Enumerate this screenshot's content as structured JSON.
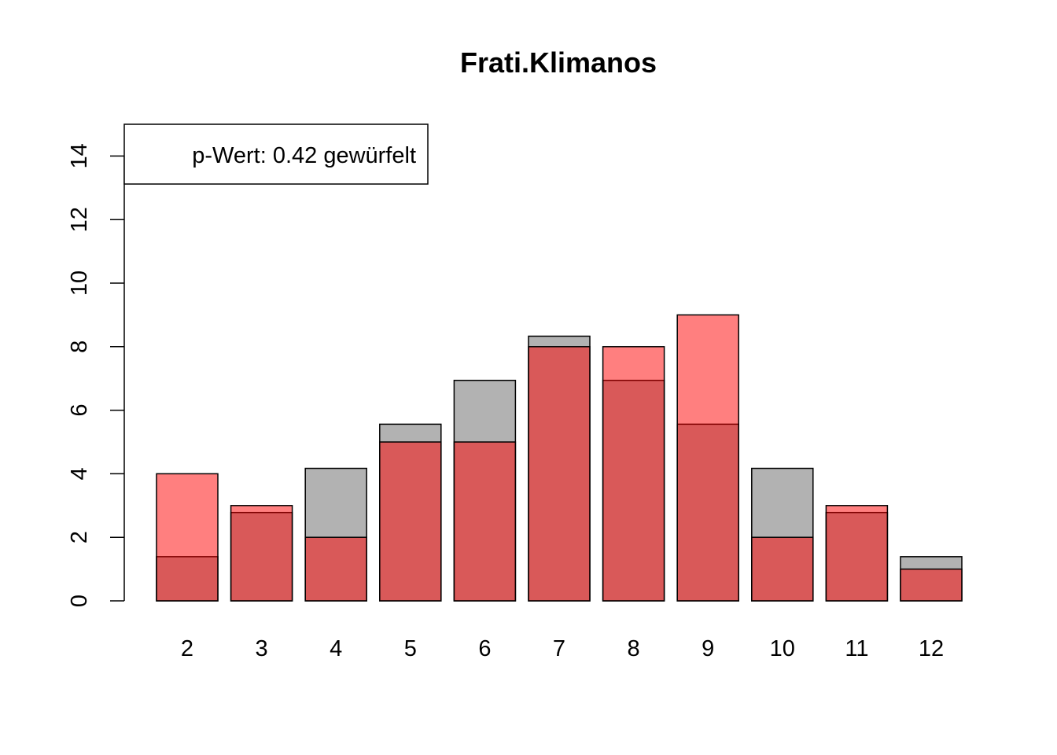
{
  "chart_data": {
    "type": "bar",
    "title": "Frati.Klimanos",
    "xlabel": "",
    "ylabel": "",
    "categories": [
      "2",
      "3",
      "4",
      "5",
      "6",
      "7",
      "8",
      "9",
      "10",
      "11",
      "12"
    ],
    "series": [
      {
        "values": [
          1.39,
          2.78,
          4.17,
          5.56,
          6.94,
          8.33,
          6.94,
          5.56,
          4.17,
          2.78,
          1.39
        ],
        "color": "#b2b2b2"
      },
      {
        "values": [
          4,
          3,
          2,
          5,
          5,
          8,
          8,
          9,
          2,
          3,
          1
        ],
        "color": "#ff0000",
        "opacity": 0.5
      }
    ],
    "ylim": [
      0,
      15
    ],
    "yticks": [
      "0",
      "2",
      "4",
      "6",
      "8",
      "10",
      "12",
      "14"
    ],
    "grid": false,
    "legend": {
      "position": "top-left",
      "text": "p-Wert: 0.42 gewürfelt"
    }
  }
}
